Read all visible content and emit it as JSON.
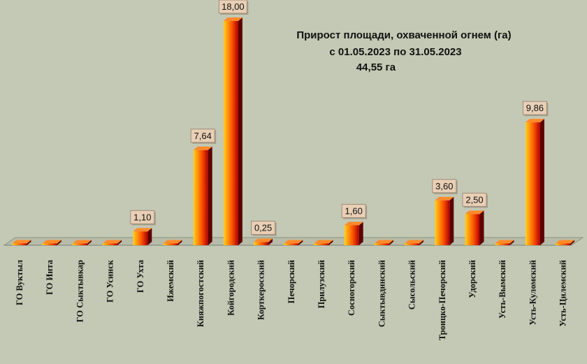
{
  "chart_data": {
    "type": "bar",
    "title_lines": [
      "Прирост площади, охваченной огнем (га)",
      "с 01.05.2023  по  31.05.2023",
      "44,55 га"
    ],
    "categories": [
      "ГО Вуктыл",
      "ГО Инта",
      "ГО Сыктывкар",
      "ГО Усинск",
      "ГО Ухта",
      "Ижемский",
      "Княжпогостский",
      "Койгородский",
      "Корткеросский",
      "Печорский",
      "Прилузский",
      "Сосногорский",
      "Сыктывдинский",
      "Сысольский",
      "Троицко-Печорский",
      "Удорский",
      "Усть-Вымский",
      "Усть-Куломский",
      "Усть-Цилемский"
    ],
    "values": [
      0,
      0,
      0,
      0,
      1.1,
      0,
      7.64,
      18.0,
      0.25,
      0,
      0,
      1.6,
      0,
      0,
      3.6,
      2.5,
      0,
      9.86,
      0
    ],
    "data_labels": [
      "",
      "",
      "",
      "",
      "1,10",
      "",
      "7,64",
      "18,00",
      "0,25",
      "",
      "",
      "1,60",
      "",
      "",
      "3,60",
      "2,50",
      "",
      "9,86",
      ""
    ],
    "ylim": [
      0,
      18
    ],
    "grid": false,
    "legend": "none",
    "colors": {
      "background": "#c3c9b4",
      "bar_light": "#ffd21e",
      "bar_mid": "#ff5a00",
      "bar_dark": "#b00000",
      "bar_side": "#5c0000",
      "bar_top": "#ff8a2a",
      "floor": "#b7bcaa",
      "label_box": "#e8cfb5"
    }
  }
}
